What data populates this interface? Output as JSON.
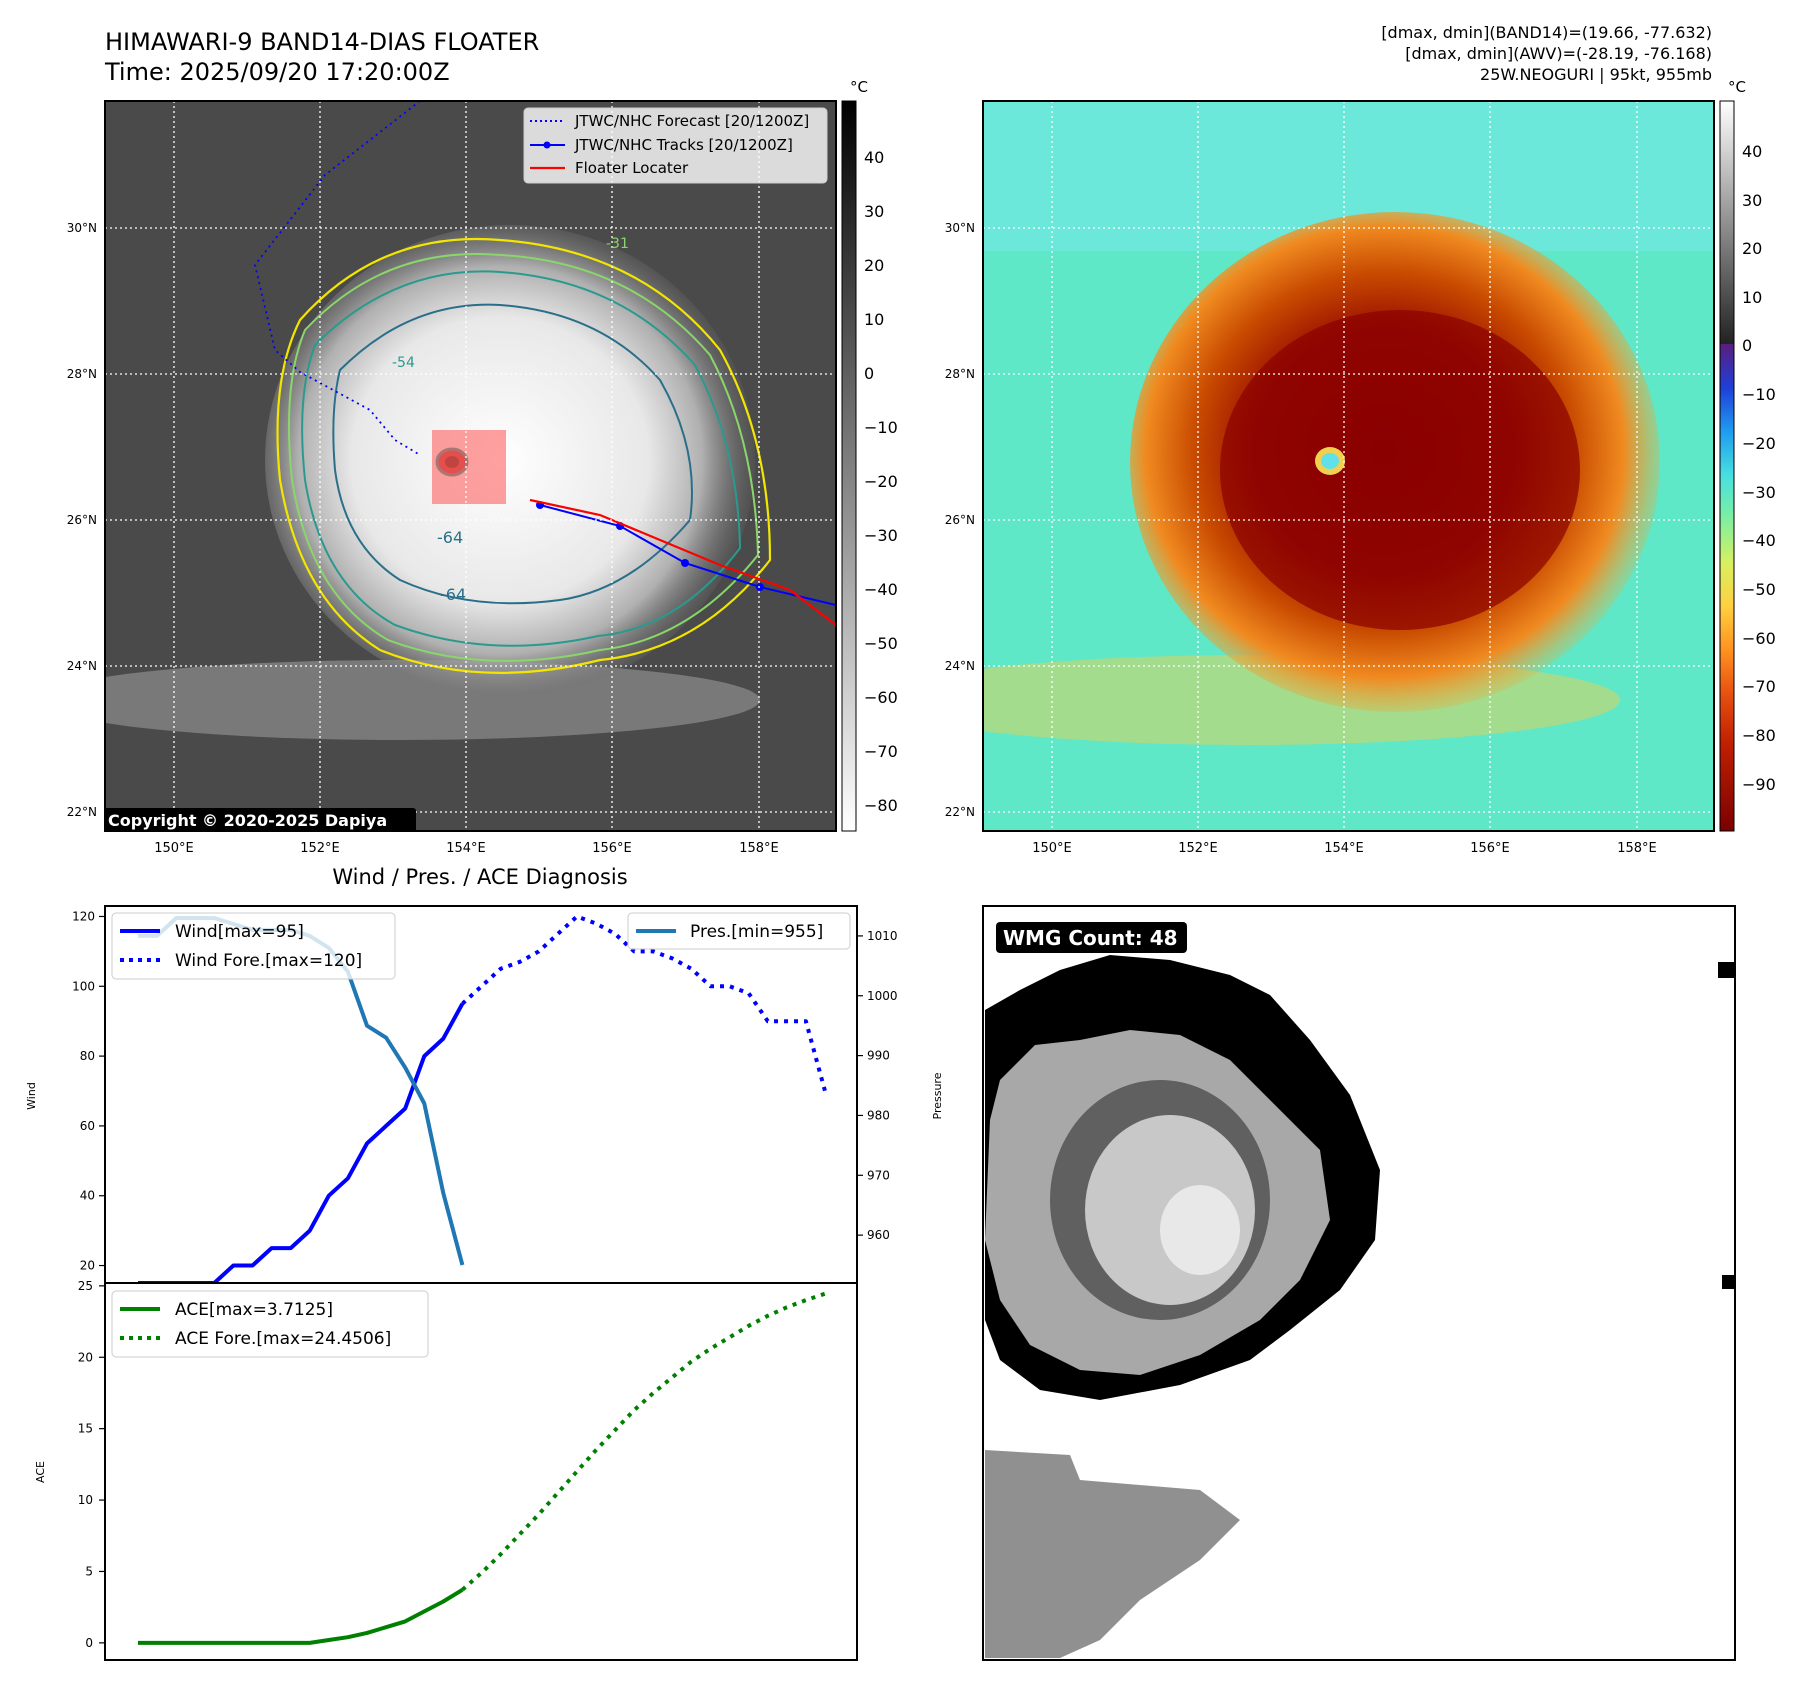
{
  "header": {
    "title_line1": "HIMAWARI-9 BAND14-DIAS FLOATER",
    "title_line2": "Time: 2025/09/20 17:20:00Z",
    "info_line1": "[dmax, dmin](BAND14)=(19.66, -77.632)",
    "info_line2": "[dmax, dmin](AWV)=(-28.19, -76.168)",
    "info_line3": "25W.NEOGURI | 95kt, 955mb"
  },
  "map_axes": {
    "lat_labels": [
      "30°N",
      "28°N",
      "26°N",
      "24°N",
      "22°N"
    ],
    "lon_labels": [
      "150°E",
      "152°E",
      "154°E",
      "156°E",
      "158°E"
    ],
    "lat_range": [
      21.8,
      31.8
    ],
    "lon_range": [
      149.0,
      159.0
    ]
  },
  "left_map": {
    "legend": {
      "forecast": "JTWC/NHC Forecast [20/1200Z]",
      "tracks": "JTWC/NHC Tracks [20/1200Z]",
      "floater": "Floater Locater"
    },
    "contour_labels": [
      "-64",
      "-64",
      "-54",
      "-31"
    ],
    "copyright": "Copyright © 2020-2025 Dapiya",
    "colorbar": {
      "unit": "°C",
      "ticks": [
        "40",
        "30",
        "20",
        "10",
        "0",
        "−10",
        "−20",
        "−30",
        "−40",
        "−50",
        "−60",
        "−70",
        "−80"
      ]
    },
    "colors": {
      "forecast": "#0000ff",
      "tracks": "#0000ff",
      "floater": "#ff0000"
    }
  },
  "right_map": {
    "colorbar": {
      "unit": "°C",
      "ticks": [
        "40",
        "30",
        "20",
        "10",
        "0",
        "−10",
        "−20",
        "−30",
        "−40",
        "−50",
        "−60",
        "−70",
        "−80",
        "−90"
      ]
    }
  },
  "diagnosis_title": "Wind / Pres. / ACE Diagnosis",
  "wmg_label": "WMG Count: 48",
  "chart_data": [
    {
      "type": "line",
      "title": "Wind / Pres. / ACE Diagnosis",
      "ylabel": "Wind",
      "ylabel_right": "Pressure",
      "ylim": [
        15,
        123
      ],
      "ylim_right": [
        952,
        1015
      ],
      "yticks": [
        "20",
        "40",
        "60",
        "80",
        "100",
        "120"
      ],
      "yticks_right": [
        "960",
        "970",
        "980",
        "990",
        "1000",
        "1010"
      ],
      "x": [
        0,
        1,
        2,
        3,
        4,
        5,
        6,
        7,
        8,
        9,
        10,
        11,
        12,
        13,
        14,
        15,
        16,
        17,
        18,
        19,
        20,
        21,
        22,
        23,
        24,
        25,
        26,
        27,
        28,
        29,
        30,
        31,
        32,
        33,
        34,
        35,
        36
      ],
      "series": [
        {
          "name": "Wind[max=95]",
          "color": "#0000ff",
          "style": "solid",
          "x": [
            0,
            1,
            2,
            3,
            4,
            5,
            6,
            7,
            8,
            9,
            10,
            11,
            12,
            13,
            14,
            15,
            16,
            17
          ],
          "values": [
            15,
            15,
            15,
            15,
            15,
            20,
            20,
            25,
            25,
            30,
            40,
            45,
            55,
            60,
            65,
            80,
            85,
            95
          ]
        },
        {
          "name": "Wind Fore.[max=120]",
          "color": "#0000ff",
          "style": "dotted",
          "x": [
            17,
            18,
            19,
            20,
            21,
            22,
            23,
            24,
            25,
            26,
            27,
            28,
            29,
            30,
            31,
            32,
            33,
            34,
            35,
            36
          ],
          "values": [
            95,
            100,
            105,
            107,
            110,
            115,
            120,
            118,
            115,
            110,
            110,
            108,
            105,
            100,
            100,
            98,
            90,
            90,
            90,
            70
          ]
        },
        {
          "name": "Pres.[min=955]",
          "color": "#1f77b4",
          "style": "solid",
          "x": [
            0,
            1,
            2,
            3,
            4,
            5,
            6,
            7,
            8,
            9,
            10,
            11,
            12,
            13,
            14,
            15,
            16,
            17
          ],
          "values": [
            1010,
            1010,
            1013,
            1013,
            1013,
            1012,
            1011,
            1011,
            1011,
            1010,
            1008,
            1004,
            995,
            993,
            988,
            982,
            967,
            955
          ]
        }
      ]
    },
    {
      "type": "line",
      "ylabel": "ACE",
      "ylim": [
        -1.2,
        25.2
      ],
      "yticks": [
        "0",
        "5",
        "10",
        "15",
        "20",
        "25"
      ],
      "series": [
        {
          "name": "ACE[max=3.7125]",
          "color": "#008000",
          "style": "solid",
          "x": [
            0,
            1,
            2,
            3,
            4,
            5,
            6,
            7,
            8,
            9,
            10,
            11,
            12,
            13,
            14,
            15,
            16,
            17
          ],
          "values": [
            0,
            0,
            0,
            0,
            0,
            0,
            0,
            0,
            0,
            0,
            0.2,
            0.4,
            0.7,
            1.1,
            1.5,
            2.2,
            2.9,
            3.7125
          ]
        },
        {
          "name": "ACE Fore.[max=24.4506]",
          "color": "#008000",
          "style": "dotted",
          "x": [
            17,
            18,
            19,
            20,
            21,
            22,
            23,
            24,
            25,
            26,
            27,
            28,
            29,
            30,
            31,
            32,
            33,
            34,
            35,
            36
          ],
          "values": [
            3.7125,
            4.9,
            6.2,
            7.6,
            9.0,
            10.5,
            12.0,
            13.5,
            14.9,
            16.3,
            17.5,
            18.6,
            19.7,
            20.6,
            21.4,
            22.2,
            22.9,
            23.5,
            24.0,
            24.4506
          ]
        }
      ]
    }
  ]
}
